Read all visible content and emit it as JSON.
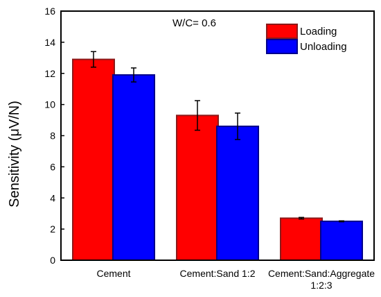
{
  "chart_data": {
    "type": "bar",
    "categories": [
      "Cement",
      "Cement:Sand 1:2",
      "Cement:Sand:Aggregate 1:2:3"
    ],
    "category_lines": [
      [
        "Cement"
      ],
      [
        "Cement:Sand 1:2"
      ],
      [
        "Cement:Sand:Aggregate",
        "1:2:3"
      ]
    ],
    "series": [
      {
        "name": "Loading",
        "values": [
          12.9,
          9.3,
          2.7
        ],
        "error": [
          0.5,
          0.95,
          0.05
        ],
        "color": "#ff0000",
        "edge_color": "#8b1a1a"
      },
      {
        "name": "Unloading",
        "values": [
          11.9,
          8.6,
          2.5
        ],
        "error": [
          0.45,
          0.85,
          0.03
        ],
        "color": "#0000ff",
        "edge_color": "#00008b"
      }
    ],
    "xlabel": "",
    "ylabel": "Sensitivity (μV/N)",
    "ylim": [
      0,
      16
    ],
    "yticks": [
      0,
      2,
      4,
      6,
      8,
      10,
      12,
      14,
      16
    ],
    "annotation": "W/C= 0.6",
    "legend_position": "top-right",
    "grid": false
  }
}
